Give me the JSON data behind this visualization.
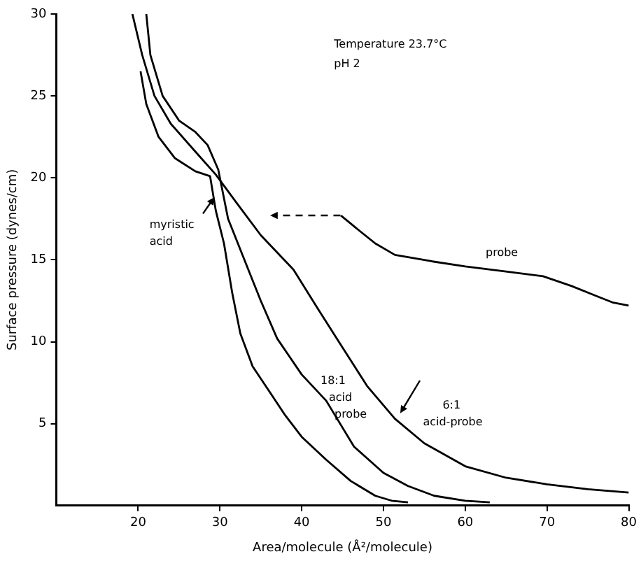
{
  "chart_data": {
    "type": "line",
    "xlabel": "Area/molecule (Å²/molecule)",
    "ylabel": "Surface pressure (dynes/cm)",
    "annotations": [
      "Temperature 23.7°C",
      "pH 2"
    ],
    "xlim": [
      10,
      80
    ],
    "xticks": [
      20,
      30,
      40,
      50,
      60,
      70,
      80
    ],
    "ylim": [
      0,
      30
    ],
    "yticks": [
      5,
      10,
      15,
      20,
      25,
      30
    ],
    "grid": false,
    "legend": false,
    "marker": "none",
    "line_style": "solid",
    "series": [
      {
        "name": "myristic acid",
        "color": "#000000",
        "x": [
          20.3,
          21,
          22.5,
          24.5,
          27,
          28.8,
          29.5,
          30.5,
          31.5,
          32.5,
          34,
          36,
          38,
          40,
          43,
          46,
          49,
          51,
          53
        ],
        "values": [
          26.5,
          24.5,
          22.5,
          21.2,
          20.4,
          20.1,
          18,
          16,
          13,
          10.5,
          8.5,
          7,
          5.5,
          4.2,
          2.8,
          1.5,
          0.6,
          0.3,
          0.2
        ]
      },
      {
        "name": "18:1 acid probe",
        "color": "#000000",
        "x": [
          21,
          21.5,
          23,
          25,
          27,
          28.5,
          29.8,
          31,
          33,
          35,
          37,
          40,
          43,
          46.4,
          50,
          53,
          56.2,
          60,
          63
        ],
        "values": [
          30,
          27.5,
          25,
          23.5,
          22.8,
          22,
          20.5,
          17.5,
          15,
          12.5,
          10.2,
          8,
          6.4,
          3.6,
          2,
          1.2,
          0.6,
          0.3,
          0.2
        ]
      },
      {
        "name": "6:1 acid-probe",
        "color": "#000000",
        "x": [
          19.3,
          20.5,
          22,
          24,
          27,
          29.5,
          32,
          35,
          39,
          42,
          44.8,
          48,
          51.4,
          55,
          60,
          65,
          70,
          75,
          80
        ],
        "values": [
          30,
          27.5,
          25,
          23.3,
          21.6,
          20.2,
          18.5,
          16.5,
          14.4,
          12,
          9.8,
          7.3,
          5.3,
          3.8,
          2.4,
          1.7,
          1.3,
          1,
          0.8
        ]
      },
      {
        "name": "probe",
        "color": "#000000",
        "x": [
          44.8,
          47,
          49,
          51.4,
          56,
          60,
          64.8,
          69.5,
          73,
          76,
          78,
          80
        ],
        "values": [
          17.7,
          16.8,
          16,
          15.3,
          14.9,
          14.6,
          14.3,
          14,
          13.4,
          12.8,
          12.4,
          12.2
        ]
      }
    ]
  }
}
